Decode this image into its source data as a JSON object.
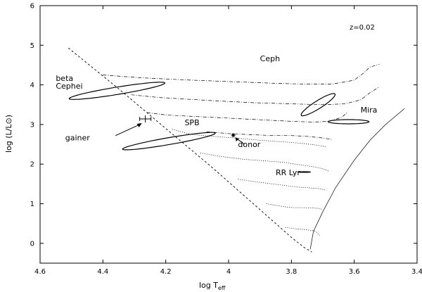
{
  "chart_data": {
    "type": "scatter",
    "xlabel_main": "log T",
    "xlabel_sub": "eff",
    "ylabel": "log (L/L⊙)",
    "xlim": [
      4.6,
      3.4
    ],
    "ylim": [
      -0.5,
      6
    ],
    "x_ticks": [
      "4.6",
      "4.4",
      "4.2",
      "4",
      "3.8",
      "3.6",
      "3.4"
    ],
    "y_ticks": [
      "0",
      "1",
      "2",
      "3",
      "4",
      "5",
      "6"
    ],
    "metallicity_label": "z=0.02",
    "regions": [
      {
        "label": "beta",
        "label2": "Cephei",
        "cx": 4.355,
        "cy": 3.85,
        "a": 0.26,
        "b": 0.055,
        "angle_deg": -56
      },
      {
        "label": "SPB",
        "cx": 4.19,
        "cy": 2.58,
        "a": 0.26,
        "b": 0.05,
        "angle_deg": -57
      },
      {
        "label": "Ceph",
        "cx": 3.715,
        "cy": 3.5,
        "a": 0.285,
        "b": 0.022,
        "angle_deg": -80
      },
      {
        "label": "Mira",
        "cx": 3.618,
        "cy": 3.07,
        "a": 0.065,
        "b": 0.053,
        "angle_deg": 0
      },
      {
        "label": "RR Lyr",
        "cx": 3.759,
        "cy": 1.8,
        "a": 0.02,
        "b": 0.008,
        "angle_deg": 0
      }
    ],
    "points": [
      {
        "label": "gainer",
        "x": 4.265,
        "y": 3.14,
        "xerr": 0.018,
        "yerr": 0.09
      },
      {
        "label": "donor",
        "x": 3.985,
        "y": 2.73
      }
    ],
    "zams": {
      "x": [
        4.51,
        4.35,
        4.2,
        4.05,
        3.9,
        3.8,
        3.76,
        3.735
      ],
      "y": [
        4.93,
        3.9,
        2.9,
        1.9,
        0.85,
        0.15,
        -0.1,
        -0.22
      ]
    },
    "tracks": [
      {
        "style": "dash-dot",
        "x": [
          4.4,
          4.28,
          4.12,
          3.95,
          3.85,
          3.76,
          3.67,
          3.6,
          3.57,
          3.55,
          3.52
        ],
        "y": [
          4.25,
          4.18,
          4.12,
          4.07,
          4.04,
          4.02,
          4.02,
          4.12,
          4.3,
          4.45,
          4.52
        ]
      },
      {
        "style": "dash-dot",
        "x": [
          4.31,
          4.22,
          4.05,
          3.92,
          3.8,
          3.7,
          3.63,
          3.58,
          3.55,
          3.52
        ],
        "y": [
          3.75,
          3.68,
          3.6,
          3.55,
          3.52,
          3.5,
          3.52,
          3.62,
          3.8,
          3.95
        ]
      },
      {
        "style": "dash-dot",
        "x": [
          4.26,
          4.2,
          4.1,
          4.0,
          3.9,
          3.8,
          3.73,
          3.68,
          3.64,
          3.62
        ],
        "y": [
          3.3,
          3.24,
          3.2,
          3.16,
          3.12,
          3.08,
          3.06,
          3.08,
          3.18,
          3.32
        ]
      },
      {
        "style": "dash-dot",
        "x": [
          4.07,
          4.0,
          3.92,
          3.85,
          3.8,
          3.75,
          3.7,
          3.67
        ],
        "y": [
          2.82,
          2.77,
          2.74,
          2.72,
          2.72,
          2.7,
          2.66,
          2.62
        ]
      },
      {
        "style": "dotted",
        "x": [
          4.18,
          4.12,
          4.05,
          3.98,
          3.9,
          3.82,
          3.76,
          3.72,
          3.69
        ],
        "y": [
          2.88,
          2.75,
          2.7,
          2.66,
          2.6,
          2.56,
          2.52,
          2.48,
          2.44
        ]
      },
      {
        "style": "dotted",
        "x": [
          4.09,
          4.03,
          3.95,
          3.88,
          3.82,
          3.77,
          3.72,
          3.7,
          3.68
        ],
        "y": [
          2.28,
          2.2,
          2.12,
          2.08,
          2.04,
          1.98,
          1.92,
          1.88,
          1.82
        ]
      },
      {
        "style": "dotted",
        "x": [
          3.97,
          3.92,
          3.86,
          3.82,
          3.78,
          3.74,
          3.71,
          3.69
        ],
        "y": [
          1.62,
          1.56,
          1.5,
          1.46,
          1.42,
          1.4,
          1.38,
          1.34
        ]
      },
      {
        "style": "dotted",
        "x": [
          3.88,
          3.84,
          3.82,
          3.79,
          3.76,
          3.73,
          3.71,
          3.7
        ],
        "y": [
          1.0,
          0.95,
          0.92,
          0.9,
          0.9,
          0.89,
          0.88,
          0.85
        ]
      },
      {
        "style": "dotted",
        "x": [
          3.82,
          3.79,
          3.76,
          3.73,
          3.72,
          3.71
        ],
        "y": [
          0.4,
          0.37,
          0.35,
          0.32,
          0.28,
          0.2
        ]
      },
      {
        "style": "solid",
        "x": [
          3.74,
          3.73,
          3.7,
          3.66,
          3.6,
          3.55,
          3.5,
          3.44
        ],
        "y": [
          -0.15,
          0.3,
          0.8,
          1.4,
          2.1,
          2.6,
          3.0,
          3.4
        ]
      }
    ]
  }
}
